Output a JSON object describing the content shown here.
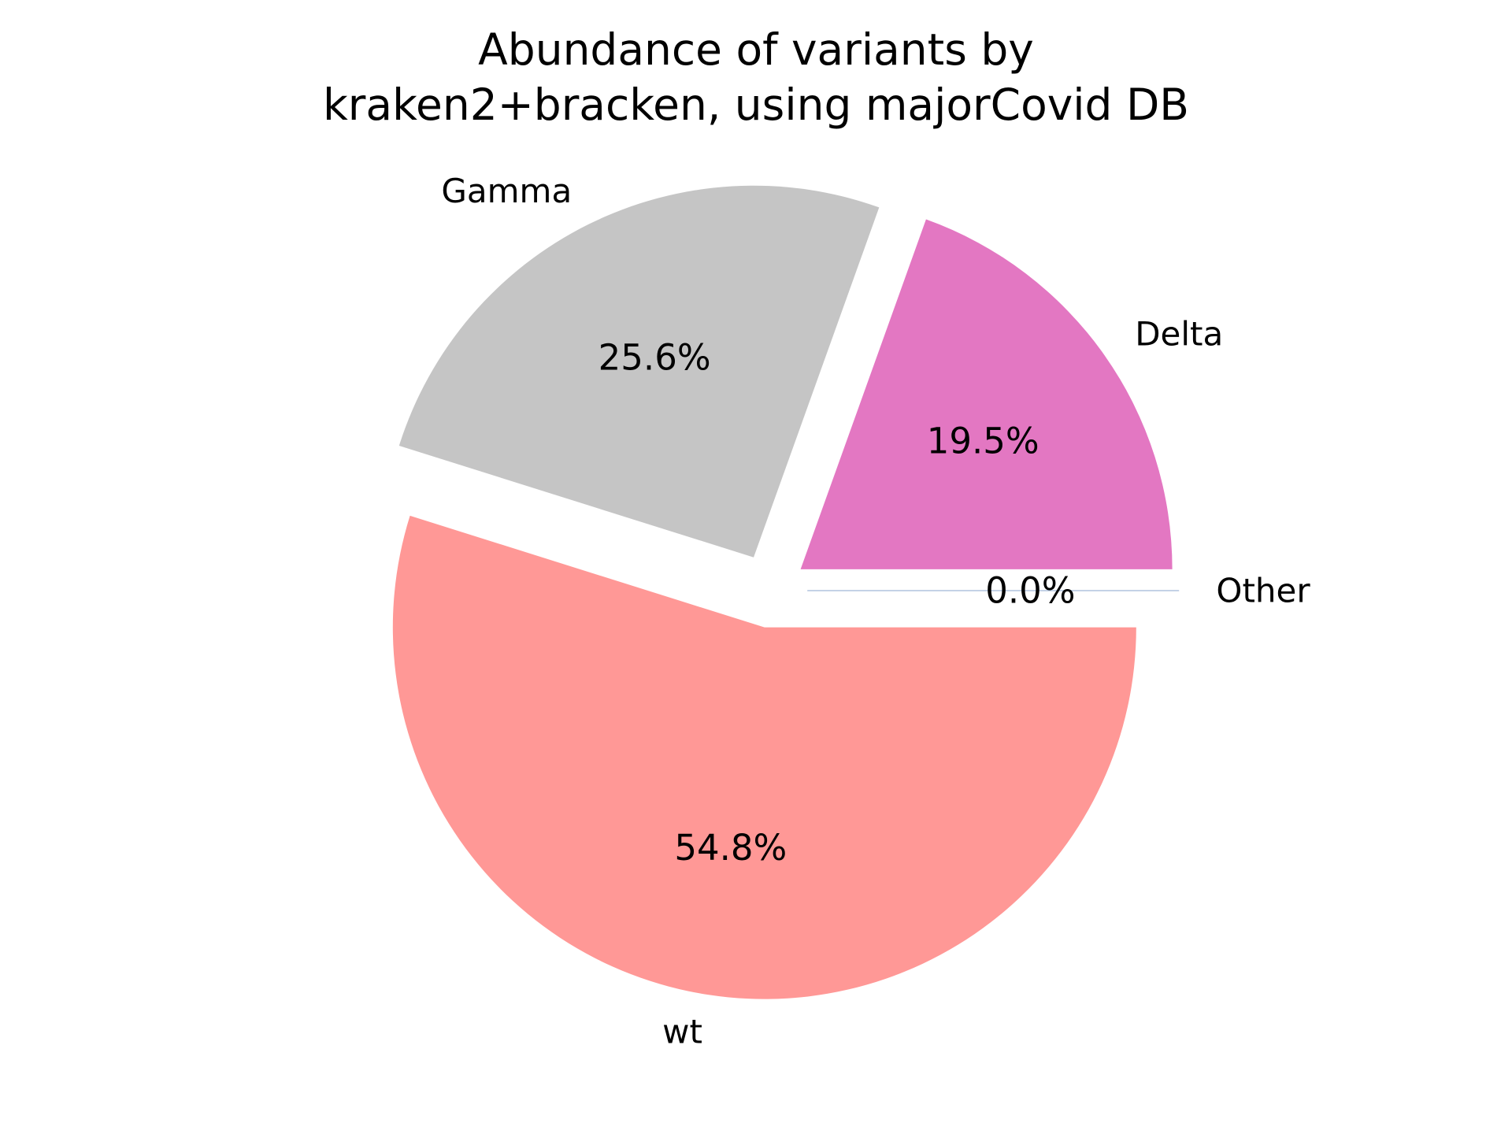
{
  "chart_data": {
    "type": "pie",
    "title_lines": [
      "Abundance of variants by",
      "kraken2+bracken, using majorCovid DB"
    ],
    "slices": [
      {
        "label": "Other",
        "value": 0.0,
        "percent_label": "0.0%",
        "color": "#b0c4de"
      },
      {
        "label": "Delta",
        "value": 19.5,
        "percent_label": "19.5%",
        "color": "#e377c2"
      },
      {
        "label": "Gamma",
        "value": 25.6,
        "percent_label": "25.6%",
        "color": "#c5c5c5"
      },
      {
        "label": "wt",
        "value": 54.8,
        "percent_label": "54.8%",
        "color": "#ff9896"
      }
    ],
    "start_angle_deg": 0,
    "direction": "counterclockwise",
    "exploded": true,
    "legend": "none"
  }
}
